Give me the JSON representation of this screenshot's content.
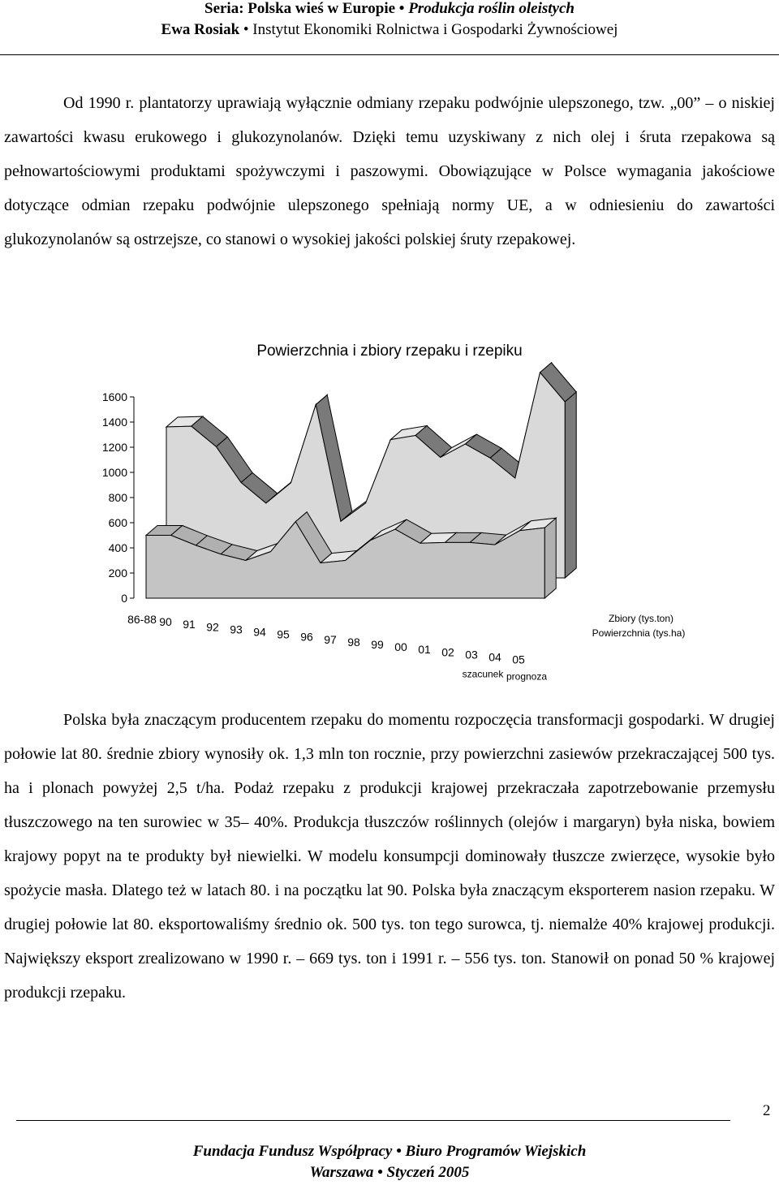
{
  "header": {
    "series_label": "Seria: Polska wieś w Europie",
    "series_title": "Produkcja roślin oleistych",
    "author": "Ewa Rosiak",
    "institute": "Instytut Ekonomiki Rolnictwa i Gospodarki Żywnościowej"
  },
  "paragraphs": [
    "Od 1990 r. plantatorzy uprawiają wyłącznie odmiany rzepaku podwójnie ulepszonego, tzw. „00” – o niskiej zawartości kwasu erukowego i glukozynolanów. Dzięki temu uzyskiwany z nich olej i śruta rzepakowa są pełnowartościowymi produktami spożywczymi i paszowymi. Obowiązujące w Polsce wymagania jakościowe dotyczące odmian rzepaku podwójnie ulepszonego spełniają normy UE, a w odniesieniu do zawartości glukozynolanów są ostrzejsze, co stanowi o wysokiej jakości polskiej śruty rzepakowej.",
    "Polska była znaczącym producentem rzepaku do momentu rozpoczęcia transformacji gospodarki. W drugiej połowie lat 80. średnie zbiory wynosiły ok. 1,3 mln ton rocznie, przy powierzchni zasiewów przekraczającej 500 tys. ha i plonach powyżej 2,5 t/ha. Podaż rzepaku z produkcji krajowej przekraczała zapotrzebowanie przemysłu tłuszczowego na ten surowiec w 35– 40%. Produkcja tłuszczów roślinnych (olejów i margaryn) była niska, bowiem krajowy popyt na te produkty był niewielki. W modelu konsumpcji dominowały tłuszcze zwierzęce, wysokie było spożycie masła. Dlatego też w latach 80. i na początku lat 90. Polska była znaczącym eksporterem nasion rzepaku. W drugiej połowie lat 80. eksportowaliśmy średnio ok. 500 tys. ton tego surowca, tj. niemalże 40% krajowej produkcji. Największy eksport zrealizowano w 1990 r. – 669 tys. ton i 1991 r. – 556 tys. ton. Stanowił on ponad 50 % krajowej produkcji rzepaku."
  ],
  "chart_data": {
    "type": "area3d",
    "title": "Powierzchnia i zbiory rzepaku i rzepiku",
    "categories": [
      "86-88",
      "90",
      "91",
      "92",
      "93",
      "94",
      "95",
      "96",
      "97",
      "98",
      "99",
      "00",
      "01",
      "02",
      "03",
      "04",
      "05"
    ],
    "category_notes": [
      null,
      null,
      null,
      null,
      null,
      null,
      null,
      null,
      null,
      null,
      null,
      null,
      null,
      null,
      null,
      "szacunek",
      "prognoza"
    ],
    "series": [
      {
        "name": "Zbiory (tys.ton)",
        "color": "#d9d9d9",
        "side_color": "#7a7a7a",
        "values": [
          1200,
          1206,
          1043,
          758,
          594,
          756,
          1377,
          449,
          595,
          1099,
          1132,
          958,
          1064,
          953,
          793,
          1633,
          1400
        ]
      },
      {
        "name": "Powierzchnia (tys.ha)",
        "color": "#c4c4c4",
        "side_color": "#b0b0b0",
        "values": [
          500,
          500,
          420,
          350,
          300,
          370,
          608,
          280,
          300,
          459,
          548,
          437,
          443,
          443,
          425,
          537,
          560
        ]
      }
    ],
    "ylim": [
      0,
      1600
    ],
    "yticks": [
      0,
      200,
      400,
      600,
      800,
      1000,
      1200,
      1400,
      1600
    ]
  },
  "page_number": "2",
  "footer": {
    "line1": "Fundacja Fundusz Współpracy • Biuro Programów Wiejskich",
    "line2": "Warszawa • Styczeń 2005"
  }
}
